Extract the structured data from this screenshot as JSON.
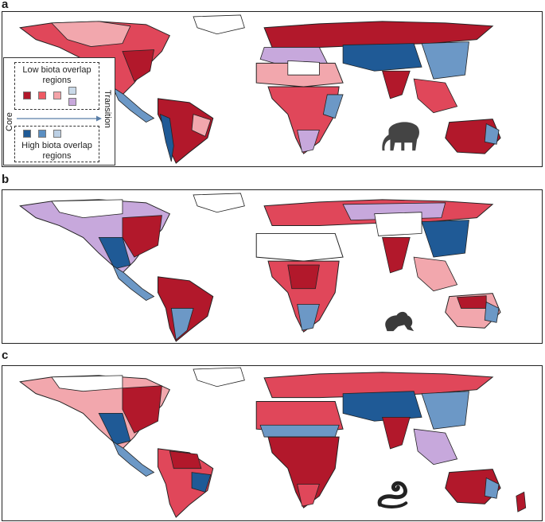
{
  "panels": [
    {
      "letter": "a",
      "animal": "elephant-silhouette"
    },
    {
      "letter": "b",
      "animal": "frog-silhouette"
    },
    {
      "letter": "c",
      "animal": "snake-silhouette"
    }
  ],
  "legend": {
    "low_title": "Low biota overlap regions",
    "high_title": "High biota overlap regions",
    "axis_start": "Core",
    "axis_end": "Transition",
    "low_colors": [
      "#b2182b",
      "#ef5a63",
      "#f4a3a8",
      "#c9d9e8",
      "#c8a8dc"
    ],
    "high_colors": [
      "#1f5a96",
      "#5b8fc2",
      "#bcd0e5"
    ]
  },
  "colors": {
    "land_red_dark": "#b2182b",
    "land_red": "#e0475a",
    "land_pink": "#f2a7ad",
    "land_blue_dark": "#1f5a96",
    "land_blue": "#6c98c6",
    "land_blue_light": "#c3d5e8",
    "land_purple": "#c7a8dc",
    "border": "#222222"
  }
}
